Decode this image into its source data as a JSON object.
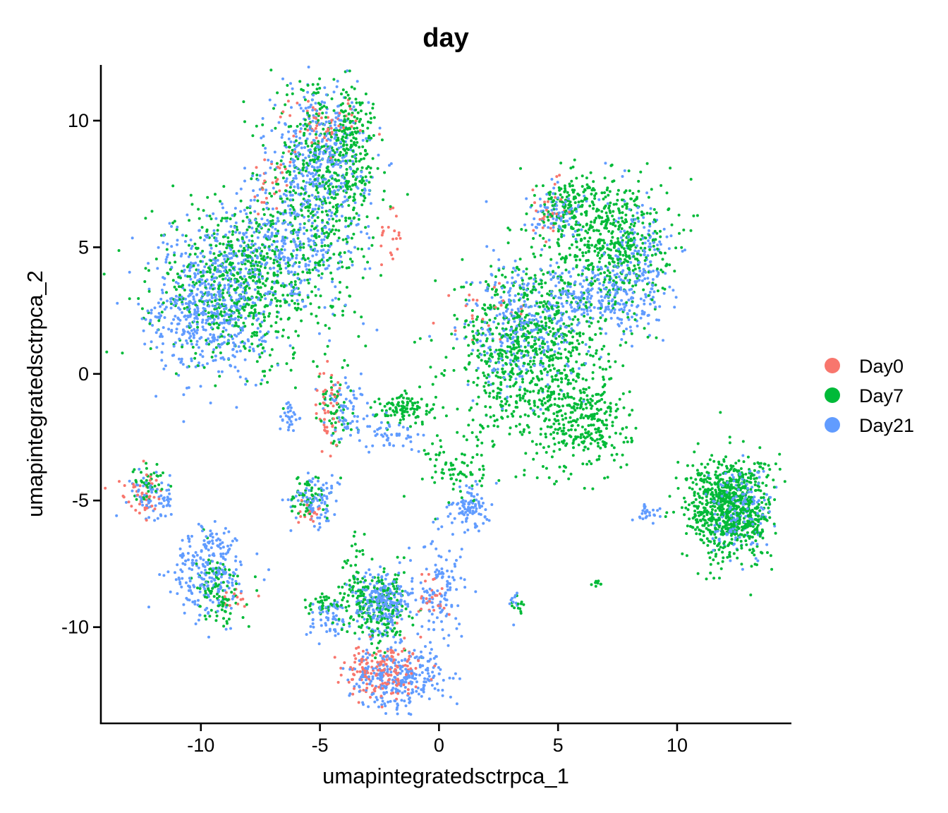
{
  "chart_data": {
    "type": "scatter",
    "title": "day",
    "xlabel": "umapintegratedsctrpca_1",
    "ylabel": "umapintegratedsctrpca_2",
    "xlim": [
      -14.2,
      14.8
    ],
    "ylim": [
      -13.8,
      12.2
    ],
    "x_ticks": [
      -10,
      -5,
      0,
      5,
      10
    ],
    "y_ticks": [
      -10,
      -5,
      0,
      5,
      10
    ],
    "x_tick_labels": [
      "-10",
      "-5",
      "0",
      "5",
      "10"
    ],
    "y_tick_labels": [
      "-10",
      "-5",
      "0",
      "5",
      "10"
    ],
    "grid": false,
    "legend_position": "right",
    "colors": {
      "Day0": "#F8766D",
      "Day7": "#00BA38",
      "Day21": "#619CFF"
    },
    "series": [
      {
        "name": "Day0",
        "color": "#F8766D",
        "clusters": [
          {
            "x": -5.0,
            "y": 9.9,
            "sx": 0.9,
            "sy": 0.6,
            "n": 60
          },
          {
            "x": -7.0,
            "y": 7.5,
            "sx": 0.5,
            "sy": 0.6,
            "n": 25
          },
          {
            "x": -2.0,
            "y": 5.5,
            "sx": 0.3,
            "sy": 0.6,
            "n": 20
          },
          {
            "x": -4.6,
            "y": -1.2,
            "sx": 0.3,
            "sy": 0.9,
            "n": 45
          },
          {
            "x": -5.5,
            "y": -5.3,
            "sx": 0.3,
            "sy": 0.3,
            "n": 20
          },
          {
            "x": -12.4,
            "y": -4.7,
            "sx": 0.4,
            "sy": 0.4,
            "n": 45
          },
          {
            "x": -8.5,
            "y": -8.8,
            "sx": 0.4,
            "sy": 0.2,
            "n": 15
          },
          {
            "x": -2.4,
            "y": -11.8,
            "sx": 0.8,
            "sy": 0.6,
            "n": 180
          },
          {
            "x": -0.3,
            "y": -9.0,
            "sx": 0.3,
            "sy": 0.6,
            "n": 25
          },
          {
            "x": 4.7,
            "y": 6.4,
            "sx": 0.4,
            "sy": 0.6,
            "n": 30
          },
          {
            "x": 2.0,
            "y": 2.5,
            "sx": 0.9,
            "sy": 0.6,
            "n": 25
          }
        ]
      },
      {
        "name": "Day7",
        "color": "#00BA38",
        "clusters": [
          {
            "x": -8.2,
            "y": 3.6,
            "sx": 1.9,
            "sy": 1.6,
            "n": 700
          },
          {
            "x": -4.9,
            "y": 7.6,
            "sx": 1.1,
            "sy": 1.9,
            "n": 500
          },
          {
            "x": -3.6,
            "y": 9.3,
            "sx": 0.5,
            "sy": 1.0,
            "n": 120
          },
          {
            "x": -4.4,
            "y": -1.2,
            "sx": 0.4,
            "sy": 0.9,
            "n": 60
          },
          {
            "x": -1.4,
            "y": -1.4,
            "sx": 0.6,
            "sy": 0.3,
            "n": 110
          },
          {
            "x": 0.7,
            "y": -3.8,
            "sx": 0.6,
            "sy": 0.7,
            "n": 70
          },
          {
            "x": 3.9,
            "y": 0.8,
            "sx": 1.6,
            "sy": 1.8,
            "n": 900
          },
          {
            "x": 6.2,
            "y": -2.0,
            "sx": 0.9,
            "sy": 0.9,
            "n": 250
          },
          {
            "x": 7.3,
            "y": 5.3,
            "sx": 1.2,
            "sy": 1.3,
            "n": 500
          },
          {
            "x": 5.5,
            "y": 6.7,
            "sx": 0.7,
            "sy": 0.5,
            "n": 130
          },
          {
            "x": 12.2,
            "y": -5.3,
            "sx": 0.9,
            "sy": 1.0,
            "n": 800
          },
          {
            "x": -9.3,
            "y": -8.5,
            "sx": 0.5,
            "sy": 0.7,
            "n": 100
          },
          {
            "x": -12.2,
            "y": -4.3,
            "sx": 0.3,
            "sy": 0.4,
            "n": 40
          },
          {
            "x": -2.6,
            "y": -9.2,
            "sx": 0.7,
            "sy": 0.7,
            "n": 250
          },
          {
            "x": -4.8,
            "y": -9.1,
            "sx": 0.4,
            "sy": 0.2,
            "n": 40
          },
          {
            "x": -5.5,
            "y": -4.8,
            "sx": 0.4,
            "sy": 0.5,
            "n": 60
          },
          {
            "x": -3.7,
            "y": -7.5,
            "sx": 0.2,
            "sy": 0.6,
            "n": 20
          },
          {
            "x": 3.3,
            "y": -9.2,
            "sx": 0.2,
            "sy": 0.2,
            "n": 12
          },
          {
            "x": 6.6,
            "y": -8.3,
            "sx": 0.1,
            "sy": 0.1,
            "n": 8
          }
        ]
      },
      {
        "name": "Day21",
        "color": "#619CFF",
        "clusters": [
          {
            "x": -9.6,
            "y": 2.7,
            "sx": 1.2,
            "sy": 1.4,
            "n": 600
          },
          {
            "x": -5.0,
            "y": 8.5,
            "sx": 1.0,
            "sy": 1.4,
            "n": 400
          },
          {
            "x": -6.5,
            "y": 5.0,
            "sx": 1.6,
            "sy": 1.3,
            "n": 350
          },
          {
            "x": -3.8,
            "y": -1.4,
            "sx": 0.6,
            "sy": 0.6,
            "n": 60
          },
          {
            "x": -6.3,
            "y": -1.7,
            "sx": 0.2,
            "sy": 0.3,
            "n": 30
          },
          {
            "x": -2.0,
            "y": -2.5,
            "sx": 0.8,
            "sy": 0.3,
            "n": 50
          },
          {
            "x": -12.0,
            "y": -4.8,
            "sx": 0.5,
            "sy": 0.5,
            "n": 70
          },
          {
            "x": -9.6,
            "y": -7.8,
            "sx": 0.8,
            "sy": 0.9,
            "n": 250
          },
          {
            "x": -5.2,
            "y": -5.0,
            "sx": 0.5,
            "sy": 0.5,
            "n": 90
          },
          {
            "x": -2.3,
            "y": -9.0,
            "sx": 0.6,
            "sy": 0.6,
            "n": 250
          },
          {
            "x": -1.8,
            "y": -12.0,
            "sx": 1.0,
            "sy": 0.6,
            "n": 300
          },
          {
            "x": 1.3,
            "y": -5.3,
            "sx": 0.4,
            "sy": 0.4,
            "n": 90
          },
          {
            "x": 0.1,
            "y": -8.5,
            "sx": 0.5,
            "sy": 1.2,
            "n": 120
          },
          {
            "x": 3.5,
            "y": 1.8,
            "sx": 1.3,
            "sy": 1.3,
            "n": 300
          },
          {
            "x": 6.8,
            "y": 3.0,
            "sx": 1.4,
            "sy": 0.6,
            "n": 250
          },
          {
            "x": 8.5,
            "y": 4.5,
            "sx": 0.7,
            "sy": 1.2,
            "n": 150
          },
          {
            "x": 5.0,
            "y": 6.3,
            "sx": 0.6,
            "sy": 0.5,
            "n": 80
          },
          {
            "x": 12.7,
            "y": -5.4,
            "sx": 0.6,
            "sy": 0.8,
            "n": 180
          },
          {
            "x": 8.7,
            "y": -5.5,
            "sx": 0.3,
            "sy": 0.2,
            "n": 25
          },
          {
            "x": -4.7,
            "y": -9.6,
            "sx": 0.5,
            "sy": 0.4,
            "n": 60
          },
          {
            "x": 3.2,
            "y": -9.0,
            "sx": 0.2,
            "sy": 0.3,
            "n": 10
          }
        ]
      }
    ],
    "point_size": 2
  }
}
